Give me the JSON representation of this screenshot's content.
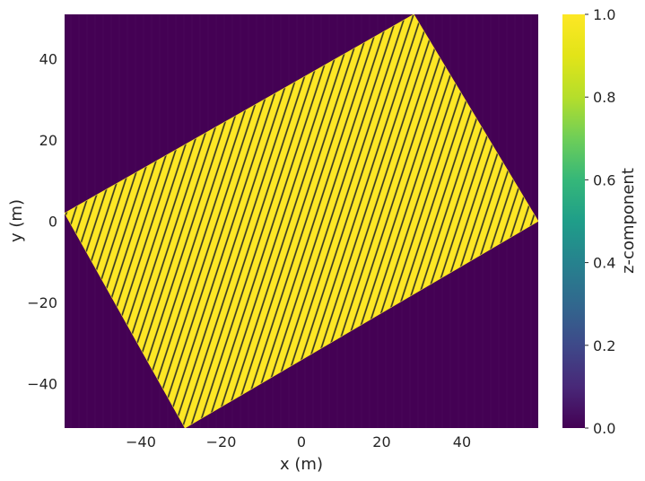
{
  "chart_data": {
    "type": "heatmap",
    "title": "",
    "xlabel": "x (m)",
    "ylabel": "y (m)",
    "xlim": [
      -59,
      59
    ],
    "ylim": [
      -51,
      51
    ],
    "x_ticks": [
      -40,
      -20,
      0,
      20,
      40
    ],
    "y_ticks": [
      -40,
      -20,
      0,
      20,
      40
    ],
    "x_tick_labels": [
      "−40",
      "−20",
      "0",
      "20",
      "40"
    ],
    "y_tick_labels": [
      "−40",
      "−20",
      "0",
      "20",
      "40"
    ],
    "grid": false,
    "colormap": "viridis",
    "colorbar": {
      "label": "z-component",
      "range": [
        0.0,
        1.0
      ],
      "ticks": [
        0.0,
        0.2,
        0.4,
        0.6,
        0.8,
        1.0
      ],
      "tick_labels": [
        "0.0",
        "0.2",
        "0.4",
        "0.6",
        "0.8",
        "1.0"
      ]
    },
    "region_value": 1.0,
    "background_value": 0.0,
    "region_polygon": [
      [
        -59,
        2
      ],
      [
        28,
        51
      ],
      [
        59,
        0
      ],
      [
        -29,
        -51
      ]
    ],
    "colors": {
      "background": "#440154",
      "region": "#fde725",
      "stripe": "#3b3b22"
    }
  }
}
